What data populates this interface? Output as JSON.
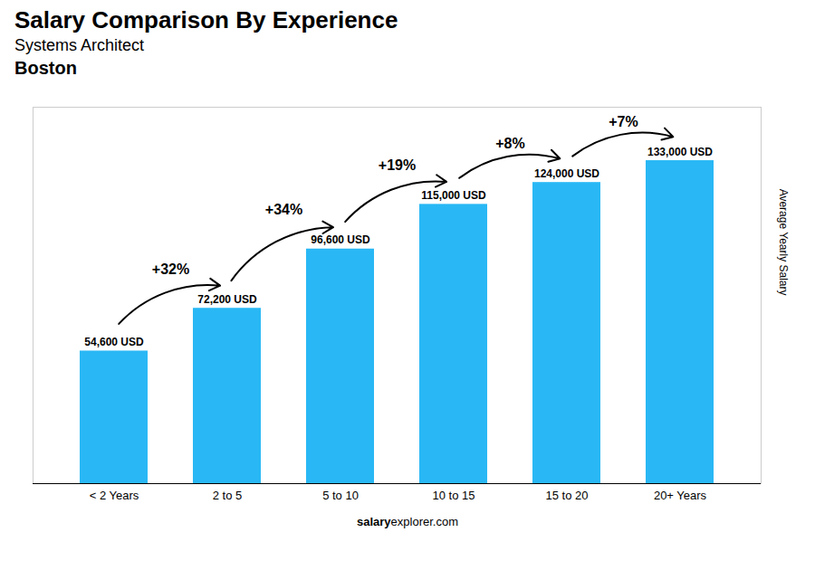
{
  "chart_data": {
    "type": "bar",
    "title": "Salary Comparison By Experience",
    "subtitle": "Systems Architect",
    "city": "Boston",
    "ylabel": "Average Yearly Salary",
    "footer": [
      "salary",
      "explorer.com"
    ],
    "categories": [
      "< 2 Years",
      "2 to 5",
      "5 to 10",
      "10 to 15",
      "15 to 20",
      "20+ Years"
    ],
    "values": [
      54600,
      72200,
      96600,
      115000,
      124000,
      133000
    ],
    "value_labels": [
      "54,600 USD",
      "72,200 USD",
      "96,600 USD",
      "115,000 USD",
      "124,000 USD",
      "133,000 USD"
    ],
    "data_labels": true,
    "annotations": [
      "+32%",
      "+34%",
      "+19%",
      "+8%",
      "+7%"
    ],
    "color": "#29b8f5",
    "ylim": [
      0,
      155000
    ],
    "yticks": [],
    "tick_labels": "x",
    "grid": false
  }
}
